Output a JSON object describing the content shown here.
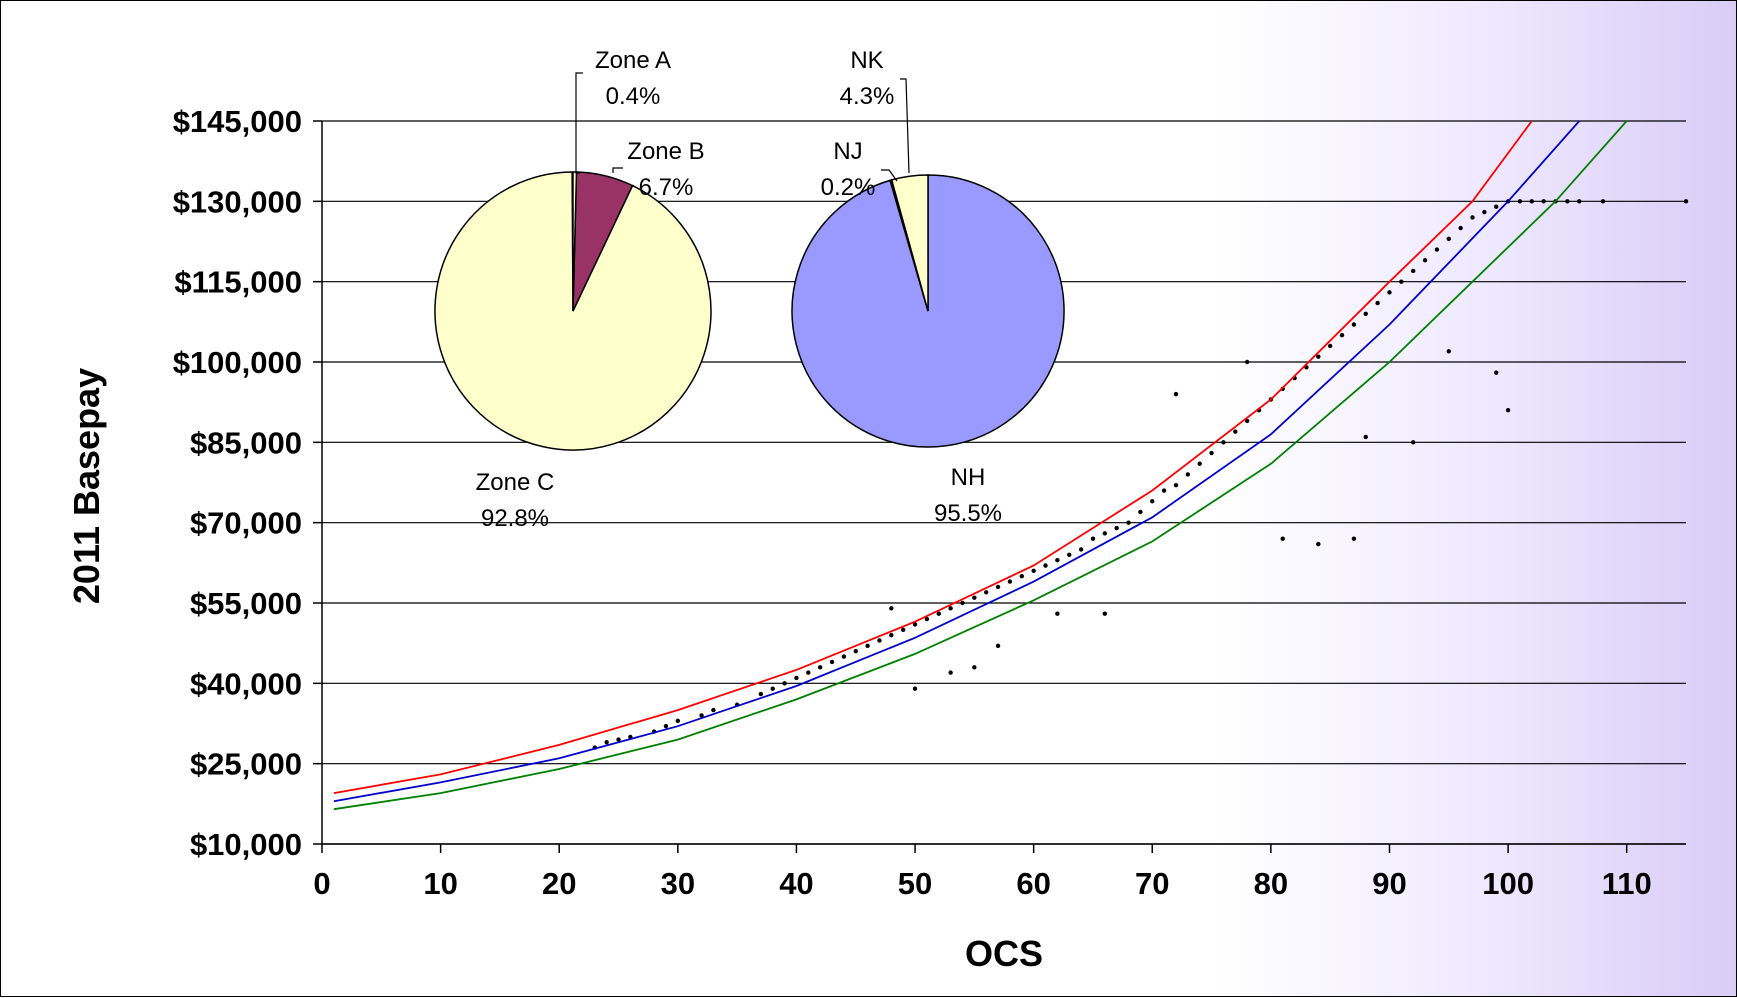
{
  "chart_data": [
    {
      "type": "scatter",
      "title": "",
      "xlabel": "OCS",
      "ylabel": "2011 Basepay",
      "xlim": [
        0,
        115
      ],
      "ylim": [
        10000,
        145000
      ],
      "x_ticks": [
        "0",
        "10",
        "20",
        "30",
        "40",
        "50",
        "60",
        "70",
        "80",
        "90",
        "100",
        "110"
      ],
      "y_ticks": [
        "$10,000",
        "$25,000",
        "$40,000",
        "$55,000",
        "$70,000",
        "$85,000",
        "$100,000",
        "$115,000",
        "$130,000",
        "$145,000"
      ],
      "grid": "horizontal",
      "legend": "none",
      "curves": [
        {
          "color": "#ff0000",
          "x": [
            1,
            10,
            20,
            30,
            40,
            50,
            60,
            70,
            80,
            90,
            97,
            102
          ],
          "y": [
            19500,
            23000,
            28500,
            35000,
            42500,
            51500,
            62000,
            76000,
            93000,
            115000,
            130000,
            145000
          ]
        },
        {
          "color": "#0000cc",
          "x": [
            1,
            10,
            20,
            30,
            40,
            50,
            60,
            70,
            80,
            90,
            100,
            106
          ],
          "y": [
            18000,
            21500,
            26000,
            32000,
            39500,
            48500,
            59000,
            71000,
            86500,
            107000,
            130000,
            145000
          ]
        },
        {
          "color": "#008000",
          "x": [
            1,
            10,
            20,
            30,
            40,
            50,
            60,
            70,
            80,
            90,
            104,
            110
          ],
          "y": [
            16500,
            19500,
            24000,
            29500,
            37000,
            45500,
            55500,
            66500,
            81000,
            100000,
            130000,
            145000
          ]
        }
      ],
      "points": {
        "color": "#000000",
        "x": [
          23,
          24,
          25,
          26,
          28,
          29,
          30,
          32,
          33,
          35,
          37,
          38,
          39,
          40,
          41,
          42,
          43,
          44,
          45,
          46,
          47,
          48,
          49,
          50,
          51,
          52,
          53,
          54,
          55,
          56,
          57,
          58,
          59,
          60,
          61,
          62,
          63,
          64,
          65,
          66,
          67,
          68,
          69,
          70,
          71,
          72,
          73,
          74,
          75,
          76,
          77,
          78,
          79,
          80,
          81,
          82,
          83,
          84,
          85,
          86,
          87,
          88,
          89,
          90,
          91,
          92,
          93,
          94,
          95,
          96,
          97,
          98,
          99,
          100,
          101,
          102,
          103,
          104,
          105,
          106,
          108,
          115,
          48,
          50,
          53,
          55,
          57,
          62,
          66,
          72,
          78,
          81,
          84,
          87,
          88,
          92,
          95,
          99,
          100
        ],
        "y": [
          28000,
          29000,
          29500,
          30000,
          31000,
          32000,
          33000,
          34000,
          35000,
          36000,
          38000,
          39000,
          40000,
          41000,
          42000,
          43000,
          44000,
          45000,
          46000,
          47000,
          48000,
          49000,
          50000,
          51000,
          52000,
          53000,
          54000,
          55000,
          56000,
          57000,
          58000,
          59000,
          60000,
          61000,
          62000,
          63000,
          64000,
          65000,
          67000,
          68000,
          69000,
          70000,
          72000,
          74000,
          76000,
          77000,
          79000,
          81000,
          83000,
          85000,
          87000,
          89000,
          91000,
          93000,
          95000,
          97000,
          99000,
          101000,
          103000,
          105000,
          107000,
          109000,
          111000,
          113000,
          115000,
          117000,
          119000,
          121000,
          123000,
          125000,
          127000,
          128000,
          129000,
          130000,
          130000,
          130000,
          130000,
          130000,
          130000,
          130000,
          130000,
          130000,
          54000,
          39000,
          42000,
          43000,
          47000,
          53000,
          53000,
          94000,
          100000,
          67000,
          66000,
          67000,
          86000,
          85000,
          102000,
          98000,
          91000
        ]
      }
    },
    {
      "type": "pie",
      "slices": [
        {
          "label": "Zone A",
          "value": 0.4,
          "text": "0.4%",
          "color": "#ffffcc"
        },
        {
          "label": "Zone B",
          "value": 6.7,
          "text": "6.7%",
          "color": "#993366"
        },
        {
          "label": "Zone C",
          "value": 92.8,
          "text": "92.8%",
          "color": "#ffffcc"
        }
      ]
    },
    {
      "type": "pie",
      "slices": [
        {
          "label": "NH",
          "value": 95.5,
          "text": "95.5%",
          "color": "#9999ff"
        },
        {
          "label": "NJ",
          "value": 0.2,
          "text": "0.2%",
          "color": "#9999ff"
        },
        {
          "label": "NK",
          "value": 4.3,
          "text": "4.3%",
          "color": "#ffffcc"
        }
      ]
    }
  ]
}
